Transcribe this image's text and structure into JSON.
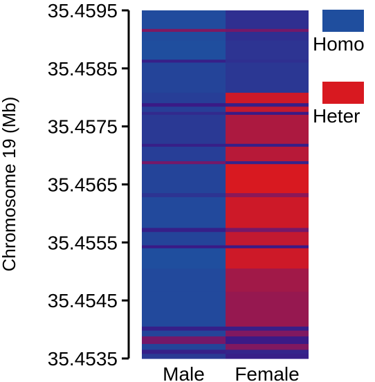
{
  "chart_data": {
    "type": "heatmap",
    "ylabel": "Chromosome 19 (Mb)",
    "xlabel": "",
    "ylim": [
      35.4535,
      35.4595
    ],
    "yticks": [
      "35.4595",
      "35.4585",
      "35.4575",
      "35.4565",
      "35.4555",
      "35.4545",
      "35.4535"
    ],
    "columns": [
      "Male",
      "Female"
    ],
    "legend": [
      {
        "name": "Homo",
        "color": "#1f4e9e"
      },
      {
        "name": "Heter",
        "color": "#d81920"
      }
    ],
    "colors": {
      "homo": "#1f4e9e",
      "heter": "#d81920",
      "mixed": "#6a1870",
      "dark": "#3a1a86"
    },
    "bands": [
      {
        "y0": 35.4595,
        "y1": 35.45918,
        "male": 0.03,
        "female": 0.3
      },
      {
        "y0": 35.45918,
        "y1": 35.45913,
        "male": 0.6,
        "female": 0.55
      },
      {
        "y0": 35.45913,
        "y1": 35.45898,
        "male": 0.03,
        "female": 0.3
      },
      {
        "y0": 35.45898,
        "y1": 35.45865,
        "male": 0.0,
        "female": 0.25
      },
      {
        "y0": 35.45865,
        "y1": 35.4586,
        "male": 0.45,
        "female": 0.3
      },
      {
        "y0": 35.4586,
        "y1": 35.45808,
        "male": 0.1,
        "female": 0.22
      },
      {
        "y0": 35.45808,
        "y1": 35.4579,
        "male": 0.15,
        "female": 0.95
      },
      {
        "y0": 35.4579,
        "y1": 35.45784,
        "male": 0.5,
        "female": 0.45
      },
      {
        "y0": 35.45784,
        "y1": 35.45775,
        "male": 0.15,
        "female": 0.9
      },
      {
        "y0": 35.45775,
        "y1": 35.4577,
        "male": 0.35,
        "female": 0.5
      },
      {
        "y0": 35.4577,
        "y1": 35.4572,
        "male": 0.2,
        "female": 0.8
      },
      {
        "y0": 35.4572,
        "y1": 35.45715,
        "male": 0.45,
        "female": 0.45
      },
      {
        "y0": 35.45715,
        "y1": 35.4569,
        "male": 0.15,
        "female": 0.85
      },
      {
        "y0": 35.4569,
        "y1": 35.45685,
        "male": 0.55,
        "female": 0.4
      },
      {
        "y0": 35.45685,
        "y1": 35.45635,
        "male": 0.1,
        "female": 1.0
      },
      {
        "y0": 35.45635,
        "y1": 35.45628,
        "male": 0.25,
        "female": 0.65
      },
      {
        "y0": 35.45628,
        "y1": 35.45575,
        "male": 0.05,
        "female": 0.95
      },
      {
        "y0": 35.45575,
        "y1": 35.45568,
        "male": 0.45,
        "female": 0.55
      },
      {
        "y0": 35.45568,
        "y1": 35.45545,
        "male": 0.1,
        "female": 0.9
      },
      {
        "y0": 35.45545,
        "y1": 35.4554,
        "male": 0.5,
        "female": 0.5
      },
      {
        "y0": 35.4554,
        "y1": 35.45505,
        "male": 0.0,
        "female": 0.95
      },
      {
        "y0": 35.45505,
        "y1": 35.45465,
        "male": 0.05,
        "female": 0.75
      },
      {
        "y0": 35.45465,
        "y1": 35.45405,
        "male": 0.05,
        "female": 0.7
      },
      {
        "y0": 35.45405,
        "y1": 35.45398,
        "male": 0.45,
        "female": 0.45
      },
      {
        "y0": 35.45398,
        "y1": 35.45388,
        "male": 0.1,
        "female": 0.6
      },
      {
        "y0": 35.45388,
        "y1": 35.45375,
        "male": 0.55,
        "female": 0.5
      },
      {
        "y0": 35.45375,
        "y1": 35.45365,
        "male": 0.1,
        "female": 0.6
      },
      {
        "y0": 35.45365,
        "y1": 35.45358,
        "male": 0.45,
        "female": 0.4
      },
      {
        "y0": 35.45358,
        "y1": 35.4535,
        "male": 0.2,
        "female": 0.45
      }
    ]
  }
}
